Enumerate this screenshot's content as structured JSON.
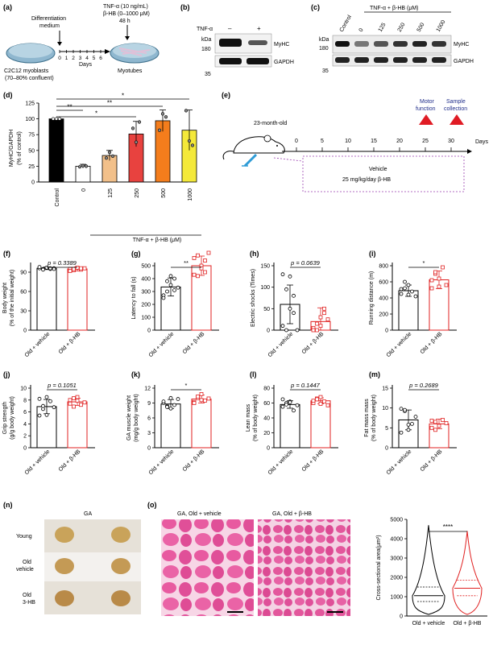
{
  "panel_labels": {
    "a": "(a)",
    "b": "(b)",
    "c": "(c)",
    "d": "(d)",
    "e": "(e)",
    "f": "(f)",
    "g": "(g)",
    "h": "(h)",
    "i": "(i)",
    "j": "(j)",
    "k": "(k)",
    "l": "(l)",
    "m": "(m)",
    "n": "(n)",
    "o": "(o)"
  },
  "panel_a": {
    "treatment_line1": "TNF-α (10 ng/mL)",
    "treatment_line2": "β-HB (0–1000 μM)",
    "treatment_line3": "48 h",
    "medium_line1": "Differentiation",
    "medium_line2": "medium",
    "days_ticks": [
      "0",
      "1",
      "2",
      "3",
      "4",
      "5",
      "6"
    ],
    "days_label": "Days",
    "cells_line1": "C2C12 myoblasts",
    "cells_line2": "(70–80% confluent)",
    "myotubes": "Myotubes"
  },
  "panel_b": {
    "tnf_label": "TNF-α",
    "minus": "–",
    "plus": "+",
    "kda": "kDa",
    "mw_180": "180",
    "mw_35": "35",
    "myhc": "MyHC",
    "gapdh": "GAPDH"
  },
  "panel_c": {
    "header": "TNF-α + β-HB (μM)",
    "lanes": [
      "Control",
      "0",
      "125",
      "250",
      "500",
      "1000"
    ],
    "kda": "kDa",
    "mw_180": "180",
    "mw_35": "35",
    "myhc": "MyHC",
    "gapdh": "GAPDH"
  },
  "panel_d": {
    "ylabel1": "MyHC/GAPDH",
    "ylabel2": "(% of control)",
    "yticks": [
      "0",
      "25",
      "50",
      "75",
      "100",
      "125"
    ],
    "xlabel": "TNF-α + β-HB (μM)",
    "sig": [
      "**",
      "*",
      "**",
      "*"
    ],
    "bar_colors": [
      "#000000",
      "#ffffff",
      "#f2c08a",
      "#e8423f",
      "#f47d1c",
      "#f4e93a"
    ],
    "chart_data": {
      "type": "bar",
      "categories": [
        "Control",
        "0",
        "125",
        "250",
        "500",
        "1000"
      ],
      "values": [
        100,
        25,
        42,
        76,
        97,
        82
      ],
      "errors": [
        0,
        3,
        8,
        20,
        17,
        32
      ],
      "points": [
        [
          100,
          100,
          100
        ],
        [
          24,
          26,
          25
        ],
        [
          38,
          47,
          41
        ],
        [
          85,
          63,
          95
        ],
        [
          82,
          108,
          103
        ],
        [
          113,
          65,
          58
        ]
      ],
      "ylim": [
        0,
        125
      ],
      "ylabel": "MyHC/GAPDH (% of control)",
      "xlabel": "TNF-α + β-HB (μM)"
    }
  },
  "panel_e": {
    "age": "23-month-old",
    "motor1": "Motor",
    "motor2": "function",
    "sample1": "Sample",
    "sample2": "collection",
    "ticks": [
      "0",
      "5",
      "10",
      "15",
      "20",
      "25",
      "30"
    ],
    "days": "Days",
    "vehicle": "Vehicle",
    "dose": "25 mg/kg/day β-HB"
  },
  "group_labels": [
    "Old + vehicle",
    "Old + β-HB"
  ],
  "colors": {
    "vehicle": "#000000",
    "bhb": "#e02020",
    "text_blue": "#1f2d8a",
    "dashed": "#9a3fb0"
  },
  "scatter_panels": [
    {
      "key": "f",
      "ylabel1": "Body weight",
      "ylabel2": "(% of the initial weight)",
      "yticks": [
        "0",
        "30",
        "60",
        "90"
      ],
      "ymax": 100,
      "sig": "p = 0.3389",
      "chart_data": {
        "type": "bar",
        "ylim": [
          0,
          100
        ],
        "means": [
          96,
          95
        ],
        "errors": [
          2,
          3
        ],
        "vehicle": [
          96,
          95,
          97,
          95,
          96,
          98,
          94,
          97,
          96,
          95
        ],
        "bhb": [
          95,
          93,
          97,
          94,
          96,
          92,
          95,
          97,
          96
        ]
      }
    },
    {
      "key": "g",
      "ylabel1": "Latency to fall (s)",
      "ylabel2": "",
      "yticks": [
        "0",
        "100",
        "200",
        "300",
        "400",
        "500"
      ],
      "ymax": 500,
      "sig": "**",
      "chart_data": {
        "type": "bar",
        "ylim": [
          0,
          500
        ],
        "means": [
          335,
          500
        ],
        "errors": [
          70,
          75
        ],
        "vehicle": [
          270,
          300,
          350,
          400,
          330,
          250,
          380,
          420,
          310
        ],
        "bhb": [
          430,
          580,
          500,
          450,
          600,
          560,
          420,
          480,
          540
        ]
      }
    },
    {
      "key": "h",
      "ylabel1": "Electric shocks (Times)",
      "ylabel2": "",
      "yticks": [
        "0",
        "50",
        "100",
        "150"
      ],
      "ymax": 150,
      "sig": "p = 0.0639",
      "chart_data": {
        "type": "bar",
        "ylim": [
          0,
          150
        ],
        "means": [
          60,
          20
        ],
        "errors": [
          45,
          32
        ],
        "vehicle": [
          130,
          0,
          50,
          80,
          0,
          10,
          95,
          125,
          40
        ],
        "bhb": [
          5,
          0,
          10,
          40,
          25,
          0,
          15,
          30,
          50
        ]
      }
    },
    {
      "key": "i",
      "ylabel1": "Running distance (m)",
      "ylabel2": "",
      "yticks": [
        "0",
        "200",
        "400",
        "600",
        "800"
      ],
      "ymax": 800,
      "sig": "*",
      "chart_data": {
        "type": "bar",
        "ylim": [
          0,
          800
        ],
        "means": [
          490,
          625
        ],
        "errors": [
          70,
          110
        ],
        "vehicle": [
          450,
          520,
          560,
          480,
          420,
          510,
          600,
          440
        ],
        "bhb": [
          520,
          700,
          640,
          780,
          560,
          620,
          720,
          540
        ]
      }
    },
    {
      "key": "j",
      "ylabel1": "Grip strength",
      "ylabel2": "(g/g body weight)",
      "yticks": [
        "0",
        "2",
        "4",
        "6",
        "8",
        "10"
      ],
      "ymax": 10,
      "sig": "p = 0.1051",
      "chart_data": {
        "type": "bar",
        "ylim": [
          0,
          10
        ],
        "means": [
          6.9,
          7.7
        ],
        "errors": [
          1.2,
          0.6
        ],
        "vehicle": [
          8.2,
          6.5,
          5.5,
          7.8,
          6.8,
          5.4,
          7.0,
          8.5
        ],
        "bhb": [
          7.4,
          8.3,
          7.9,
          7.2,
          7.6,
          8.0,
          6.9,
          8.5
        ]
      }
    },
    {
      "key": "k",
      "ylabel1": "GA muscle weight",
      "ylabel2": "(mg/g body weight)",
      "yticks": [
        "0",
        "3",
        "6",
        "9",
        "12"
      ],
      "ymax": 12,
      "sig": "*",
      "chart_data": {
        "type": "bar",
        "ylim": [
          0,
          12
        ],
        "means": [
          8.8,
          9.8
        ],
        "errors": [
          0.9,
          0.8
        ],
        "vehicle": [
          9.0,
          8.4,
          7.9,
          8.6,
          9.8,
          9.3,
          8.2,
          10.0
        ],
        "bhb": [
          9.2,
          10.0,
          10.8,
          9.5,
          9.9,
          9.0,
          10.3,
          9.6
        ]
      }
    },
    {
      "key": "l",
      "ylabel1": "Lean mass",
      "ylabel2": "(% of body weight)",
      "yticks": [
        "0",
        "20",
        "40",
        "60",
        "80"
      ],
      "ymax": 80,
      "sig": "p = 0.1447",
      "chart_data": {
        "type": "bar",
        "ylim": [
          0,
          80
        ],
        "means": [
          58,
          63
        ],
        "errors": [
          5,
          4
        ],
        "vehicle": [
          55,
          60,
          62,
          50,
          57,
          65,
          58,
          61
        ],
        "bhb": [
          60,
          66,
          68,
          62,
          57,
          63,
          65,
          59
        ]
      }
    },
    {
      "key": "m",
      "ylabel1": "Fat mass mass",
      "ylabel2": "(% of body weight)",
      "yticks": [
        "0",
        "5",
        "10",
        "15"
      ],
      "ymax": 15,
      "sig": "p = 0.2689",
      "chart_data": {
        "type": "bar",
        "ylim": [
          0,
          15
        ],
        "means": [
          7.0,
          6.0
        ],
        "errors": [
          2.5,
          1.2
        ],
        "vehicle": [
          9.8,
          9.2,
          4.5,
          6.0,
          7.8,
          3.8,
          9.5,
          5.8
        ],
        "bhb": [
          6.8,
          4.5,
          5.5,
          7.0,
          6.2,
          5.0,
          6.5
        ]
      }
    }
  ],
  "panel_n": {
    "title": "GA",
    "rows": [
      "Young",
      "Old",
      "vehicle",
      "Old",
      "3-HB"
    ]
  },
  "panel_o": {
    "img1": "GA, Old + vehicle",
    "img2": "GA, Old + β-HB",
    "ylabel": "Cross-sectional area(μm²)",
    "yticks": [
      "0",
      "1000",
      "2000",
      "3000",
      "4000",
      "5000"
    ],
    "sig": "****",
    "groups": [
      "Old + vehicle",
      "Old + β-HB"
    ],
    "chart_data": {
      "type": "violin",
      "ylim": [
        0,
        5000
      ],
      "medians": [
        1050,
        1440
      ],
      "q1": [
        750,
        1050
      ],
      "q3": [
        1500,
        1850
      ],
      "max": [
        4700,
        4400
      ]
    }
  }
}
